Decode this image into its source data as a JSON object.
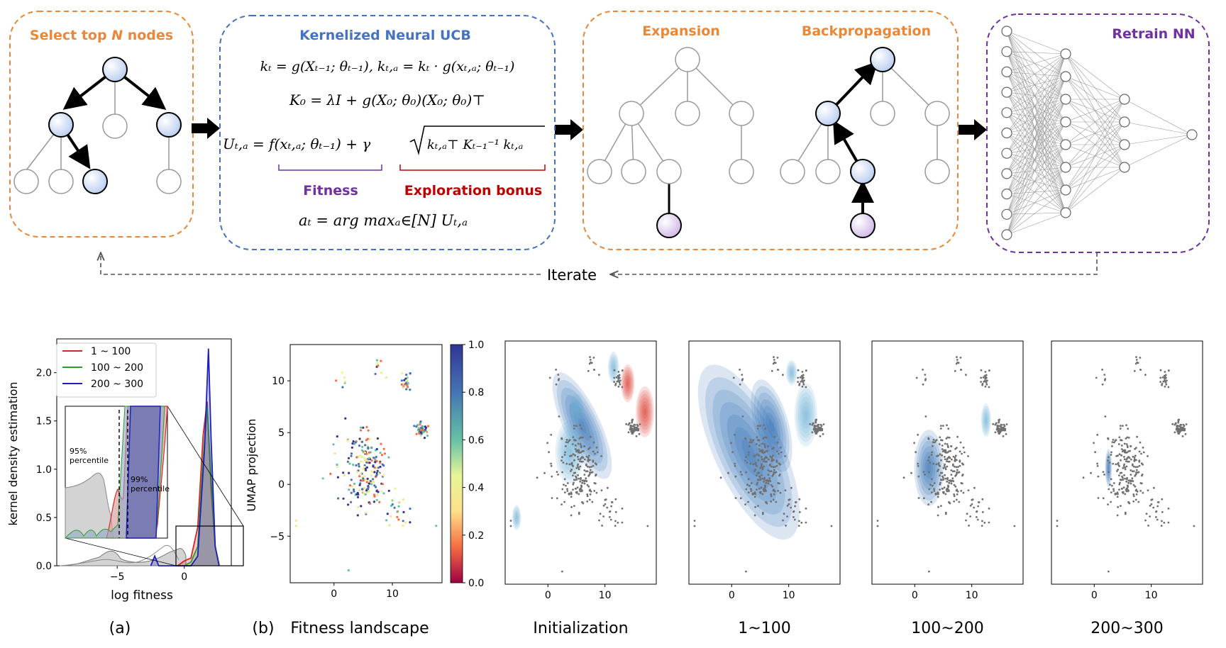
{
  "colors": {
    "orange": "#e8883a",
    "blue": "#4472c4",
    "purple": "#7030a0",
    "red": "#c00000",
    "node_blue": "#c9d8f2",
    "node_purple": "#d9c6ea",
    "scatter_gray": "#707070",
    "kde_blue": "#2166ac",
    "kde_red": "#d73027"
  },
  "pipeline": {
    "select": {
      "title_prefix": "Select top ",
      "title_n": "N",
      "title_suffix": " nodes"
    },
    "ucb": {
      "title": "Kernelized Neural UCB",
      "eq1": "kₜ = g(Xₜ₋₁; θₜ₋₁),  kₜ,ₐ = kₜ · g(xₜ,ₐ; θₜ₋₁)",
      "eq2": "K₀ = λI + g(X₀; θ₀)(X₀; θ₀)⊤",
      "eq3_left": "Uₜ,ₐ = f(xₜ,ₐ; θₜ₋₁) + γ",
      "eq3_root": "kₜ,ₐ⊤ Kₜ₋₁⁻¹ kₜ,ₐ",
      "fitness_label": "Fitness",
      "bonus_label": "Exploration bonus",
      "eq4": "aₜ = arg maxₐ∈[N] Uₜ,ₐ"
    },
    "expansion_title": "Expansion",
    "backprop_title": "Backpropagation",
    "retrain_title": "Retrain NN",
    "iterate_label": "Iterate"
  },
  "chart_data": [
    {
      "type": "line",
      "panel": "(a)",
      "xlabel": "log fitness",
      "ylabel": "kernel density estimation",
      "xticks": [
        "−5",
        "0"
      ],
      "yticks": [
        "0.0",
        "0.5",
        "1.0",
        "1.5",
        "2.0"
      ],
      "ylim": [
        0,
        2.35
      ],
      "legend": [
        "1 ~ 100",
        "100 ~ 200",
        "200 ~ 300"
      ],
      "series_colors": [
        "#d62728",
        "#2ca02c",
        "#1f1fbf"
      ],
      "inset": {
        "label_95": "95%\npercentile",
        "label_99": "99%\npercentile"
      },
      "series": [
        {
          "name": "1 ~ 100",
          "x": [
            -0.5,
            0.0,
            0.5,
            1.0,
            1.4,
            1.7,
            2.0,
            2.3,
            2.6
          ],
          "y": [
            0.0,
            0.05,
            0.08,
            0.4,
            1.35,
            1.7,
            0.8,
            0.2,
            0.0
          ]
        },
        {
          "name": "100 ~ 200",
          "x": [
            0.0,
            0.5,
            1.0,
            1.4,
            1.7,
            2.0,
            2.3,
            2.6
          ],
          "y": [
            0.0,
            0.04,
            0.2,
            1.1,
            1.65,
            0.9,
            0.2,
            0.0
          ]
        },
        {
          "name": "200 ~ 300",
          "x": [
            -2.5,
            -2.2,
            -1.9,
            0.5,
            1.0,
            1.5,
            1.8,
            2.0,
            2.3,
            2.6
          ],
          "y": [
            0.0,
            0.1,
            0.0,
            0.0,
            0.1,
            1.2,
            2.25,
            1.3,
            0.2,
            0.0
          ]
        }
      ]
    },
    {
      "type": "scatter",
      "panel": "(b)",
      "title": "Fitness landscape",
      "ylabel": "UMAP projection",
      "xticks": [
        "0",
        "10"
      ],
      "yticks": [
        "10",
        "5",
        "0",
        "−5"
      ],
      "colorbar_ticks": [
        "1.0",
        "0.8",
        "0.6",
        "0.4",
        "0.2",
        "0.0"
      ],
      "colorbar_range": [
        0.0,
        1.0
      ]
    },
    {
      "type": "heatmap",
      "title": "Initialization",
      "xticks": [
        "0",
        "10"
      ]
    },
    {
      "type": "heatmap",
      "title": "1~100",
      "xticks": [
        "0",
        "10"
      ]
    },
    {
      "type": "heatmap",
      "title": "100~200",
      "xticks": [
        "0",
        "10"
      ]
    },
    {
      "type": "heatmap",
      "title": "200~300",
      "xticks": [
        "0",
        "10"
      ]
    }
  ],
  "captions": {
    "a": "(a)",
    "b": "(b)"
  }
}
